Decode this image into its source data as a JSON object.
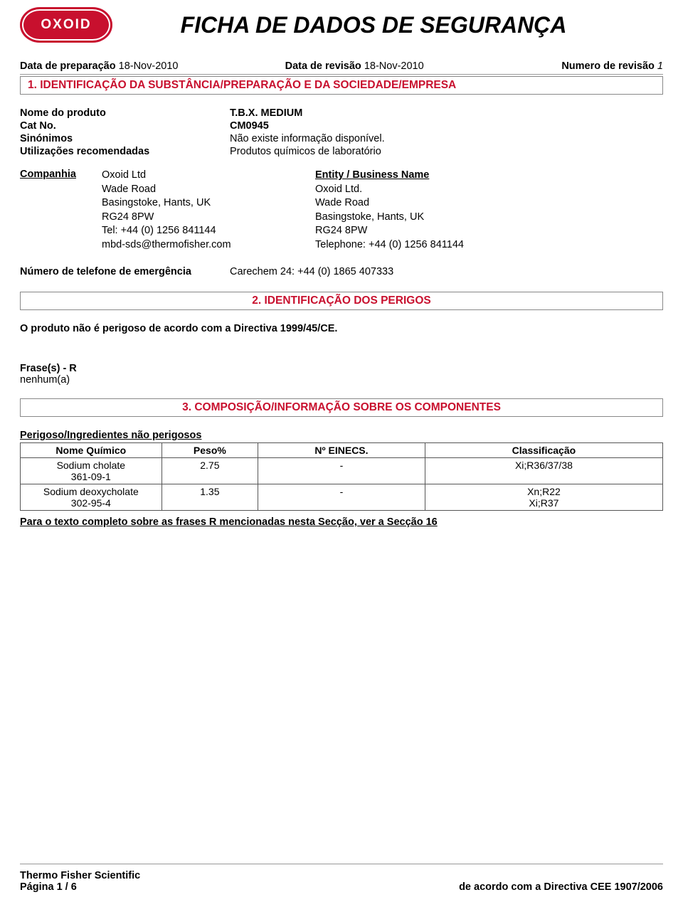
{
  "logo_text": "OXOID",
  "document_title": "FICHA DE DADOS DE SEGURANÇA",
  "meta": {
    "prep_label": "Data de preparação",
    "prep_value": "18-Nov-2010",
    "rev_label": "Data de revisão",
    "rev_value": "18-Nov-2010",
    "revnum_label": "Numero de revisão",
    "revnum_value": "1"
  },
  "section1": {
    "heading": "1. IDENTIFICAÇÃO DA SUBSTÂNCIA/PREPARAÇÃO E DA SOCIEDADE/EMPRESA",
    "product_name_label": "Nome do produto",
    "product_name": "T.B.X. MEDIUM",
    "catno_label": "Cat No.",
    "catno": "CM0945",
    "synonyms_label": "Sinónimos",
    "synonyms": "Não existe informação disponível.",
    "uses_label": "Utilizações recomendadas",
    "uses": "Produtos químicos de laboratório",
    "company_label": "Companhia",
    "company_col1": [
      "Oxoid Ltd",
      "Wade Road",
      "Basingstoke, Hants, UK",
      "RG24 8PW",
      "Tel: +44 (0) 1256 841144",
      "mbd-sds@thermofisher.com"
    ],
    "entity_header": "Entity / Business Name",
    "company_col2": [
      "Oxoid Ltd.",
      "Wade Road",
      "Basingstoke, Hants, UK",
      "RG24 8PW",
      "Telephone: +44 (0) 1256 841144"
    ],
    "emergency_label": "Número de telefone de emergência",
    "emergency_value": "Carechem 24: +44 (0) 1865 407333"
  },
  "section2": {
    "heading": "2. IDENTIFICAÇÃO DOS PERIGOS",
    "body": "O produto não é perigoso de acordo com a Directiva 1999/45/CE.",
    "frase_label": "Frase(s) - R",
    "frase_value": "nenhum(a)"
  },
  "section3": {
    "heading": "3. COMPOSIÇÃO/INFORMAÇÃO SOBRE OS COMPONENTES",
    "ingredients_header": "Perigoso/Ingredientes não perigosos",
    "table": {
      "columns": [
        "Nome Químico",
        "Peso%",
        "Nº EINECS.",
        "Classificação"
      ],
      "rows": [
        {
          "name": "Sodium cholate",
          "cas": "361-09-1",
          "peso": "2.75",
          "einecs": "-",
          "class": "Xi;R36/37/38"
        },
        {
          "name": "Sodium deoxycholate",
          "cas": "302-95-4",
          "peso": "1.35",
          "einecs": "-",
          "class": "Xn;R22\nXi;R37"
        }
      ]
    },
    "note": "Para o texto completo sobre as frases R mencionadas nesta Secção, ver a Secção 16"
  },
  "footer": {
    "company": "Thermo Fisher Scientific",
    "page": "Página  1 / 6",
    "directive": "de acordo com a Directiva CEE 1907/2006"
  }
}
